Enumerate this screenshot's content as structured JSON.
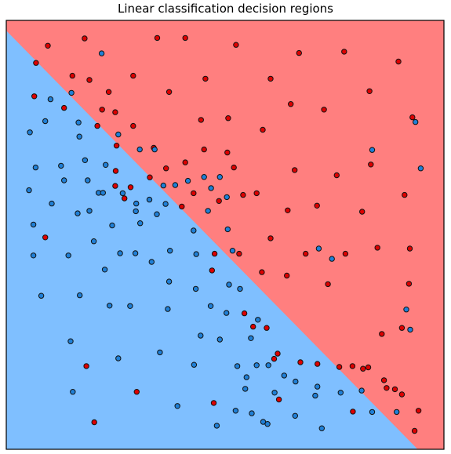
{
  "chart_data": {
    "type": "scatter",
    "title": "Linear classification decision regions",
    "xlabel": "",
    "ylabel": "",
    "xlim": [
      0,
      100
    ],
    "ylim": [
      0,
      100
    ],
    "grid": false,
    "axis_ticks": false,
    "region_colors": {
      "red": "#ff7f7f",
      "blue": "#7fbfff"
    },
    "point_colors": {
      "red": "#dd0000",
      "blue": "#1f7fd6"
    },
    "point_edge_color": "#111111",
    "decision_boundary": [
      [
        0,
        97.6
      ],
      [
        94,
        0
      ]
    ],
    "series": [
      {
        "class": "red",
        "points": [
          [
            9.5,
            94.1
          ],
          [
            17.9,
            95.8
          ],
          [
            34.5,
            95.9
          ],
          [
            40.9,
            95.9
          ],
          [
            52.5,
            94.3
          ],
          [
            66.9,
            92.4
          ],
          [
            77.2,
            92.7
          ],
          [
            89.6,
            90.4
          ],
          [
            6.8,
            90.1
          ],
          [
            15.1,
            87.1
          ],
          [
            19,
            86.1
          ],
          [
            29,
            87.1
          ],
          [
            45.5,
            86.4
          ],
          [
            60.4,
            86.4
          ],
          [
            23.4,
            83.3
          ],
          [
            37.2,
            83.3
          ],
          [
            6.4,
            82.3
          ],
          [
            13.2,
            79.6
          ],
          [
            21.9,
            79.2
          ],
          [
            24.9,
            78.6
          ],
          [
            65,
            80.5
          ],
          [
            72.6,
            79.2
          ],
          [
            83,
            83.5
          ],
          [
            92.8,
            77.4
          ],
          [
            44.5,
            76.8
          ],
          [
            50.7,
            77.2
          ],
          [
            58.6,
            74.5
          ],
          [
            29,
            75.4
          ],
          [
            20.8,
            75.4
          ],
          [
            25.2,
            70.8
          ],
          [
            45.2,
            69.9
          ],
          [
            50.5,
            69.2
          ],
          [
            33.7,
            70.3
          ],
          [
            40.9,
            66.9
          ],
          [
            36.5,
            65.5
          ],
          [
            25,
            64.9
          ],
          [
            52,
            65.7
          ],
          [
            65.9,
            65.1
          ],
          [
            75.5,
            63.9
          ],
          [
            83.3,
            66.4
          ],
          [
            24.9,
            61.4
          ],
          [
            28.4,
            61.1
          ],
          [
            32.8,
            63.4
          ],
          [
            27,
            58.5
          ],
          [
            42.8,
            59.7
          ],
          [
            54.1,
            59.3
          ],
          [
            57.2,
            59.7
          ],
          [
            48.6,
            57.9
          ],
          [
            40.1,
            56.6
          ],
          [
            64.3,
            55.7
          ],
          [
            71,
            56.8
          ],
          [
            81.3,
            55.4
          ],
          [
            91,
            59.3
          ],
          [
            8.9,
            49.4
          ],
          [
            60.4,
            49.2
          ],
          [
            47.6,
            45.6
          ],
          [
            53.2,
            45.6
          ],
          [
            68.4,
            45.6
          ],
          [
            77.5,
            45.6
          ],
          [
            84.8,
            47
          ],
          [
            92.2,
            46.8
          ],
          [
            47,
            41.7
          ],
          [
            58.4,
            41.3
          ],
          [
            64.1,
            40.5
          ],
          [
            73.5,
            38.5
          ],
          [
            92,
            38.6
          ],
          [
            54.4,
            31.7
          ],
          [
            56.4,
            28.6
          ],
          [
            59.5,
            28.3
          ],
          [
            85.8,
            26.9
          ],
          [
            90.4,
            28.3
          ],
          [
            62,
            22.3
          ],
          [
            61.2,
            21.1
          ],
          [
            67.2,
            20.3
          ],
          [
            71.1,
            19.9
          ],
          [
            76.1,
            19.2
          ],
          [
            79.1,
            19.4
          ],
          [
            81.5,
            18.8
          ],
          [
            82.7,
            19.1
          ],
          [
            18.3,
            19.4
          ],
          [
            86.3,
            16.1
          ],
          [
            86.9,
            14.3
          ],
          [
            88.8,
            14
          ],
          [
            90.4,
            12.8
          ],
          [
            29.8,
            13.4
          ],
          [
            47.4,
            10.8
          ],
          [
            62.3,
            11.6
          ],
          [
            79.2,
            8.8
          ],
          [
            94.2,
            9
          ],
          [
            20.1,
            6.3
          ],
          [
            93.3,
            4.3
          ]
        ]
      },
      {
        "class": "blue",
        "points": [
          [
            21.8,
            92.3
          ],
          [
            14.9,
            83.1
          ],
          [
            10.1,
            81.6
          ],
          [
            8.9,
            76.5
          ],
          [
            16.5,
            76.2
          ],
          [
            5.4,
            73.9
          ],
          [
            16.7,
            72.9
          ],
          [
            25.6,
            73.4
          ],
          [
            30.5,
            69.9
          ],
          [
            33.9,
            69.9
          ],
          [
            83.6,
            69.8
          ],
          [
            93.5,
            76.3
          ],
          [
            94.7,
            65.5
          ],
          [
            6.7,
            65.7
          ],
          [
            12.5,
            66.1
          ],
          [
            18,
            67.4
          ],
          [
            22.7,
            66.3
          ],
          [
            13.2,
            62.7
          ],
          [
            18.6,
            62.7
          ],
          [
            26.6,
            59.7
          ],
          [
            35.9,
            61.5
          ],
          [
            38.6,
            61.6
          ],
          [
            41.5,
            62.6
          ],
          [
            45.2,
            63.5
          ],
          [
            48.8,
            63.5
          ],
          [
            5.2,
            60.4
          ],
          [
            10.4,
            57.3
          ],
          [
            21.1,
            59.8
          ],
          [
            22.1,
            59.8
          ],
          [
            29.7,
            57.3
          ],
          [
            32.7,
            58.2
          ],
          [
            36.4,
            57.2
          ],
          [
            46.8,
            60.9
          ],
          [
            50.4,
            58.8
          ],
          [
            16.3,
            55
          ],
          [
            19,
            55.6
          ],
          [
            29.6,
            55.5
          ],
          [
            34.4,
            54.8
          ],
          [
            46.1,
            55.6
          ],
          [
            6.2,
            52.4
          ],
          [
            24.2,
            52.2
          ],
          [
            30.6,
            52.7
          ],
          [
            42.8,
            51
          ],
          [
            50.6,
            51.3
          ],
          [
            20,
            48.5
          ],
          [
            14.2,
            45.2
          ],
          [
            26,
            45.7
          ],
          [
            29.5,
            45.7
          ],
          [
            37.4,
            46.3
          ],
          [
            43.4,
            45.5
          ],
          [
            51.7,
            46.3
          ],
          [
            71.4,
            46.8
          ],
          [
            74.4,
            44.4
          ],
          [
            6.2,
            45.2
          ],
          [
            33.2,
            43.7
          ],
          [
            22.5,
            41.9
          ],
          [
            37.2,
            39.1
          ],
          [
            43.3,
            37.4
          ],
          [
            50.9,
            38.4
          ],
          [
            53.4,
            37.4
          ],
          [
            8,
            35.8
          ],
          [
            16.8,
            35.9
          ],
          [
            23.6,
            33.5
          ],
          [
            28.3,
            33.4
          ],
          [
            36.9,
            32.7
          ],
          [
            46.7,
            33.4
          ],
          [
            50.3,
            31.8
          ],
          [
            57.5,
            30.2
          ],
          [
            91.4,
            32.6
          ],
          [
            92.3,
            27.9
          ],
          [
            44.4,
            26.5
          ],
          [
            48.8,
            25.6
          ],
          [
            55.9,
            25.9
          ],
          [
            14.7,
            25.2
          ],
          [
            35.1,
            22.6
          ],
          [
            25.6,
            21.2
          ],
          [
            42.9,
            19.7
          ],
          [
            52.8,
            19.4
          ],
          [
            57.2,
            19.6
          ],
          [
            59.9,
            19.6
          ],
          [
            63.5,
            17.2
          ],
          [
            54.9,
            16.8
          ],
          [
            66.1,
            15.8
          ],
          [
            71.1,
            14.6
          ],
          [
            54.6,
            14.1
          ],
          [
            61.3,
            13.2
          ],
          [
            70.6,
            12.5
          ],
          [
            76.4,
            13.2
          ],
          [
            15.2,
            13.4
          ],
          [
            81.2,
            13.7
          ],
          [
            39.1,
            10.1
          ],
          [
            52.4,
            9
          ],
          [
            56.1,
            8.4
          ],
          [
            66,
            7.8
          ],
          [
            58.7,
            6.4
          ],
          [
            83.6,
            8.7
          ],
          [
            89.2,
            8.7
          ],
          [
            48.1,
            5.5
          ],
          [
            59.7,
            5.9
          ],
          [
            72.1,
            4.9
          ]
        ]
      }
    ]
  }
}
